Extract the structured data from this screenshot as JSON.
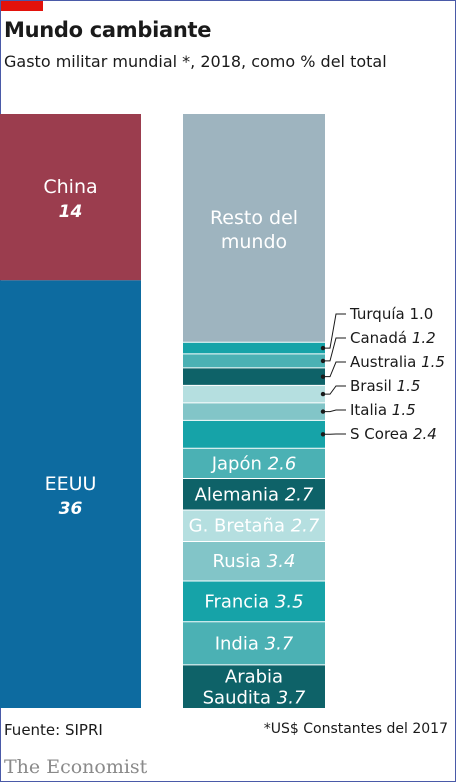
{
  "title": "Mundo cambiante",
  "subtitle": "Gasto militar mundial *, 2018, como % del total",
  "footer": {
    "source": "Fuente: SIPRI",
    "note": "*US$ Constantes del 2017"
  },
  "brand": "The Economist",
  "colors": {
    "china": "#9b3d4e",
    "eeuu": "#0d6ba0",
    "rest": "#9eb4bf",
    "leader": "#1a1a1a"
  },
  "chart_data": {
    "type": "stacked-bar",
    "title": "Mundo cambiante",
    "subtitle": "Gasto militar mundial *, 2018, como % del total",
    "columns": [
      {
        "segments": [
          {
            "name": "China",
            "value": 14,
            "label": "China",
            "value_label": "14",
            "color": "#9b3d4e"
          },
          {
            "name": "EEUU",
            "value": 36,
            "label": "EEUU",
            "value_label": "36",
            "color": "#0d6ba0"
          }
        ]
      },
      {
        "segments": [
          {
            "name": "Resto del mundo",
            "value": 19.6,
            "label_lines": [
              "Resto del",
              "mundo"
            ],
            "color": "#9eb4bf",
            "label_inside": true
          },
          {
            "name": "Turquía",
            "value": 1.0,
            "value_label": "1.0",
            "color": "#16a3a8",
            "callout": true
          },
          {
            "name": "Canadá",
            "value": 1.2,
            "value_label": "1.2",
            "color": "#4bb1b4",
            "callout": true
          },
          {
            "name": "Australia",
            "value": 1.5,
            "value_label": "1.5",
            "color": "#0e6268",
            "callout": true
          },
          {
            "name": "Brasil",
            "value": 1.5,
            "value_label": "1.5",
            "color": "#b5dfe0",
            "callout": true
          },
          {
            "name": "Italia",
            "value": 1.5,
            "value_label": "1.5",
            "color": "#82c5c8",
            "callout": true
          },
          {
            "name": "S Corea",
            "value": 2.4,
            "value_label": "2.4",
            "color": "#16a3a8",
            "callout": true
          },
          {
            "name": "Japón",
            "value": 2.6,
            "value_label": "2.6",
            "color": "#4bb1b4",
            "label_inside": true
          },
          {
            "name": "Alemania",
            "value": 2.7,
            "value_label": "2.7",
            "color": "#0e6268",
            "label_inside": true
          },
          {
            "name": "G. Bretaña",
            "value": 2.7,
            "value_label": "2.7",
            "color": "#b5dfe0",
            "label_inside": true
          },
          {
            "name": "Rusia",
            "value": 3.4,
            "value_label": "3.4",
            "color": "#82c5c8",
            "label_inside": true
          },
          {
            "name": "Francia",
            "value": 3.5,
            "value_label": "3.5",
            "color": "#16a3a8",
            "label_inside": true
          },
          {
            "name": "India",
            "value": 3.7,
            "value_label": "3.7",
            "color": "#4bb1b4",
            "label_inside": true
          },
          {
            "name": "Arabia Saudita",
            "label_lines": [
              "Arabia",
              "Saudita"
            ],
            "value": 3.7,
            "value_label": "3.7",
            "color": "#0e6268",
            "label_inside": true
          }
        ]
      }
    ]
  }
}
